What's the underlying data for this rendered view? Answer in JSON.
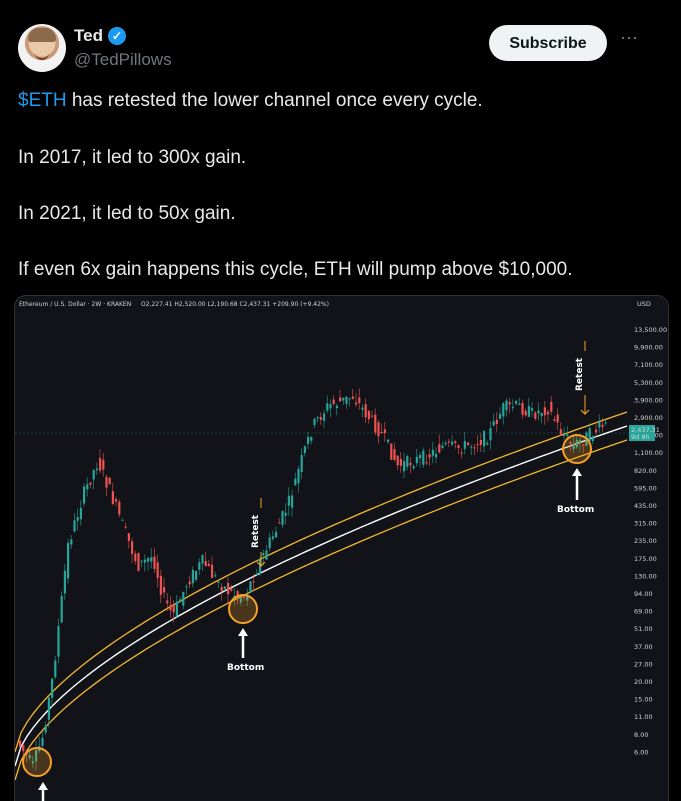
{
  "author": {
    "name": "Ted",
    "handle": "@TedPillows",
    "verified_icon": "verified-badge-icon"
  },
  "actions": {
    "subscribe_label": "Subscribe",
    "more_icon": "more-dots-icon"
  },
  "post": {
    "cashtag": "$ETH",
    "line1_rest": " has retested the lower channel once every cycle.",
    "line2": "In 2017, it led to 300x gain.",
    "line3": "In 2021, it led to 50x gain.",
    "line4": "If even 6x gain happens this cycle, ETH will pump above $10,000."
  },
  "colors": {
    "accent": "#1d9bf0",
    "bull": "#26a69a",
    "bear": "#ef5350",
    "channel": "#f5b82e",
    "midline": "#ffffff"
  },
  "chart_data": {
    "type": "candlestick",
    "title": "Ethereum / U.S. Dollar · 2W · KRAKEN",
    "ohlc_label": "O2,227.41 H2,520.00 L2,190.68 C2,437.31 +209.90 (+9.42%)",
    "currency": "USD",
    "y_scale": "log",
    "y_ticks": [
      "13,500.00",
      "9,900.00",
      "7,100.00",
      "5,300.00",
      "3,900.00",
      "2,900.00",
      "1,500.00",
      "1,100.00",
      "820.00",
      "595.00",
      "435.00",
      "315.00",
      "235.00",
      "175.00",
      "130.00",
      "94.00",
      "69.00",
      "51.00",
      "37.00",
      "27.00",
      "20.00",
      "15.00",
      "11.00",
      "8.00",
      "6.00"
    ],
    "last_price": "2,437.31",
    "last_price_sub": "9d 8h",
    "annotations": {
      "retest": "Retest",
      "bottom": "Bottom"
    }
  }
}
